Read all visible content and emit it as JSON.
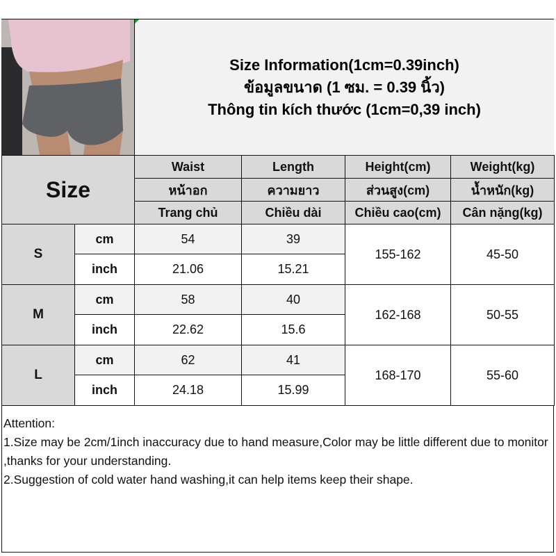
{
  "banner": {
    "line1": "Size Information(1cm=0.39inch)",
    "line2": "ข้อมูลขนาด (1 ซม. = 0.39 นิ้ว)",
    "line3": "Thông tin kích thước (1cm=0,39 inch)"
  },
  "table": {
    "size_label": "Size",
    "headers": [
      [
        "Waist",
        "Length",
        "Height(cm)",
        "Weight(kg)"
      ],
      [
        "หน้าอก",
        "ความยาว",
        "ส่วนสูง(cm)",
        "น้ำหนัก(kg)"
      ],
      [
        "Trang chủ",
        "Chiều dài",
        "Chiều cao(cm)",
        "Cân nặng(kg)"
      ]
    ],
    "rows": [
      {
        "size": "S",
        "cm_label": "cm",
        "inch_label": "inch",
        "waist_cm": "54",
        "length_cm": "39",
        "waist_inch": "21.06",
        "length_inch": "15.21",
        "height": "155-162",
        "weight": "45-50"
      },
      {
        "size": "M",
        "cm_label": "cm",
        "inch_label": "inch",
        "waist_cm": "58",
        "length_cm": "40",
        "waist_inch": "22.62",
        "length_inch": "15.6",
        "height": "162-168",
        "weight": "50-55"
      },
      {
        "size": "L",
        "cm_label": "cm",
        "inch_label": "inch",
        "waist_cm": "62",
        "length_cm": "41",
        "waist_inch": "24.18",
        "length_inch": "15.99",
        "height": "168-170",
        "weight": "55-60"
      }
    ]
  },
  "attention": {
    "title": "Attention:",
    "note1": "1.Size may be 2cm/1inch inaccuracy due to hand measure,Color may be little different due to monitor ,thanks for your understanding.",
    "note2": "2.Suggestion of cold water hand washing,it can help items keep their shape."
  }
}
